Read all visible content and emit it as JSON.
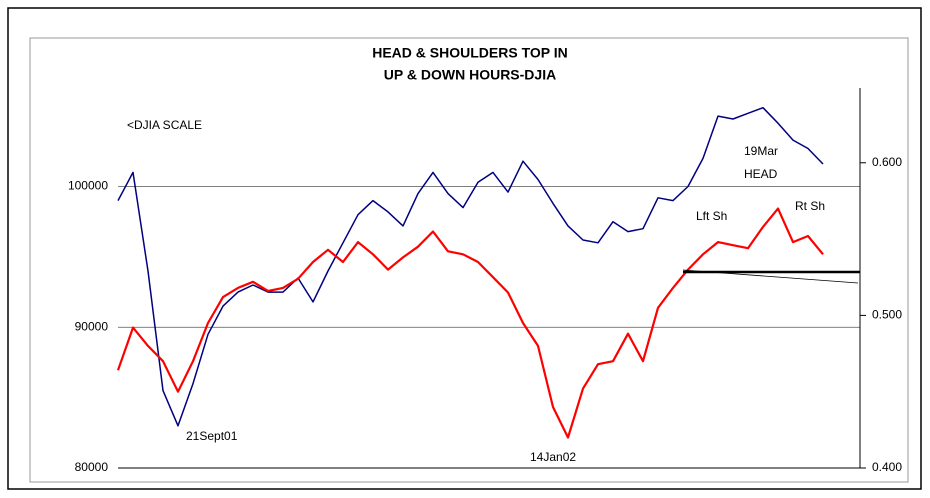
{
  "chart_data": {
    "type": "line",
    "title": [
      "HEAD & SHOULDERS TOP IN",
      "UP & DOWN HOURS-DJIA"
    ],
    "annotations": [
      "<DJIA SCALE",
      "21Sept01",
      "14Jan02",
      "19Mar",
      "HEAD",
      "Lft Sh",
      "Rt Sh"
    ],
    "ylim": [
      80000,
      107000
    ],
    "yticks": [
      80000,
      90000,
      100000
    ],
    "y2lim": [
      0.4,
      0.649
    ],
    "y2ticks": [
      {
        "value": 0.4,
        "label": "0.400"
      },
      {
        "value": 0.5,
        "label": "0.500"
      },
      {
        "value": 0.6,
        "label": "0.600"
      }
    ],
    "grid": true,
    "series": [
      {
        "color": "#000080",
        "axis": "y",
        "values": [
          99000,
          101000,
          94000,
          85500,
          83000,
          86000,
          89500,
          91500,
          92500,
          93000,
          92500,
          92500,
          93500,
          91800,
          94000,
          96000,
          98000,
          99000,
          98200,
          97200,
          99500,
          101000,
          99500,
          98500,
          100300,
          101000,
          99600,
          101800,
          100500,
          98800,
          97200,
          96200,
          96000,
          97500,
          96800,
          97000,
          99200,
          99000,
          100000,
          102000,
          105000,
          104800,
          105200,
          105600,
          104500,
          103300,
          102700,
          101600
        ]
      },
      {
        "color": "#ff0000",
        "axis": "y2",
        "values": [
          0.464,
          0.492,
          0.48,
          0.47,
          0.45,
          0.47,
          0.495,
          0.512,
          0.518,
          0.522,
          0.516,
          0.518,
          0.524,
          0.535,
          0.543,
          0.535,
          0.548,
          0.54,
          0.53,
          0.538,
          0.545,
          0.555,
          0.542,
          0.54,
          0.535,
          0.525,
          0.515,
          0.495,
          0.48,
          0.44,
          0.42,
          0.452,
          0.468,
          0.47,
          0.488,
          0.47,
          0.505,
          0.518,
          0.53,
          0.54,
          0.548,
          0.546,
          0.544,
          0.558,
          0.57,
          0.548,
          0.552,
          0.54
        ]
      }
    ]
  }
}
